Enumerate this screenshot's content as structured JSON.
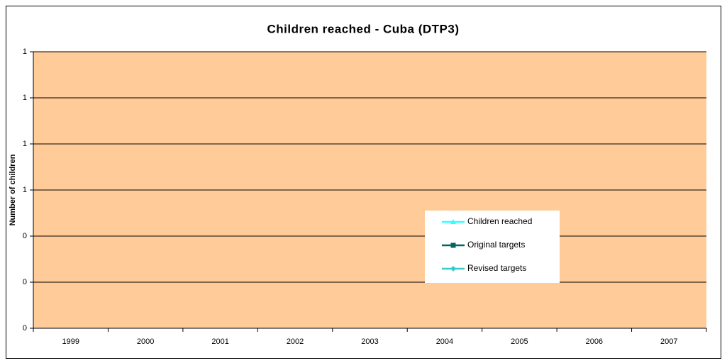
{
  "chart_data": {
    "type": "line",
    "title": "Children reached - Cuba (DTP3)",
    "y_label": "Number of children",
    "categories": [
      "1999",
      "2000",
      "2001",
      "2002",
      "2003",
      "2004",
      "2005",
      "2006",
      "2007"
    ],
    "series": [
      {
        "name": "Children reached",
        "color": "#33ffff",
        "marker": "triangle",
        "values": [
          null,
          null,
          null,
          null,
          null,
          null,
          null,
          null,
          null
        ]
      },
      {
        "name": "Original targets",
        "color": "#006666",
        "marker": "square",
        "values": [
          null,
          null,
          null,
          null,
          null,
          null,
          null,
          null,
          null
        ]
      },
      {
        "name": "Revised targets",
        "color": "#33cccc",
        "marker": "diamond",
        "values": [
          null,
          null,
          null,
          null,
          null,
          null,
          null,
          null,
          null
        ]
      }
    ],
    "ylim": [
      0,
      1.2
    ],
    "yticks": [
      0,
      {
        "value": 0.2,
        "label": "0"
      },
      {
        "value": 0.4,
        "label": "0"
      },
      {
        "value": 0.6,
        "label": "1"
      },
      {
        "value": 0.8,
        "label": "1"
      },
      {
        "value": 1.0,
        "label": "1"
      },
      {
        "value": 1.2,
        "label": "1"
      }
    ],
    "grid": true,
    "plot_background": "#ffcc99",
    "title_color": "#008080"
  }
}
